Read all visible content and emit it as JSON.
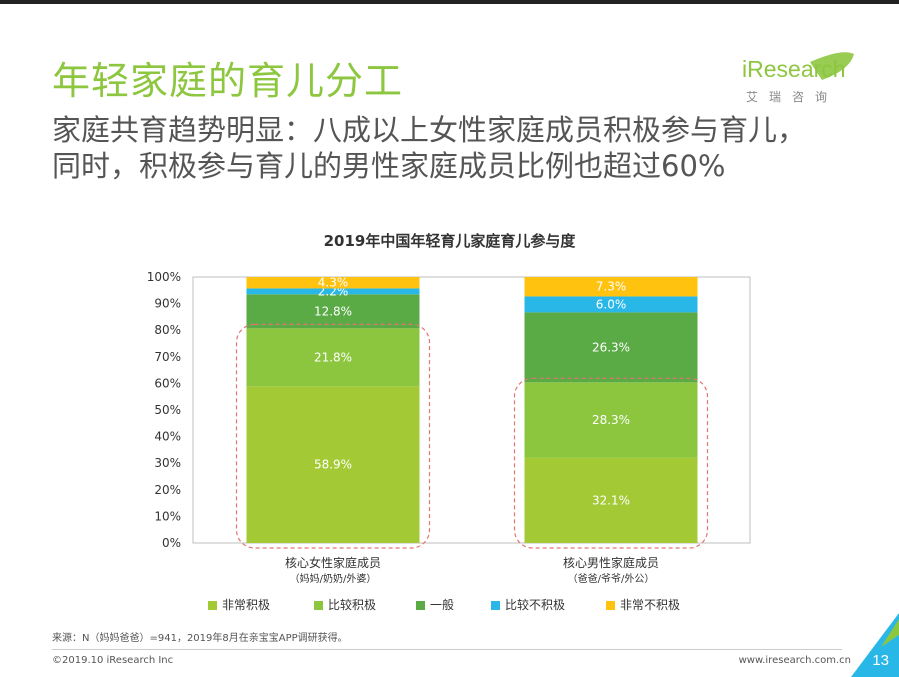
{
  "header": {
    "title": "年轻家庭的育儿分工",
    "subtitle_lines": [
      "家庭共育趋势明显：八成以上女性家庭成员积极参与育儿，",
      "同时，积极参与育儿的男性家庭成员比例也超过60%"
    ]
  },
  "logo": {
    "brand_i": "i",
    "brand_rest": "Research",
    "tagline": "艾瑞咨询"
  },
  "colors": {
    "title_green": "#8dc63f",
    "very_active": "#a3c935",
    "active": "#8cc63f",
    "neutral": "#5aaa46",
    "less_active": "#29b7e8",
    "not_active": "#ffc20e",
    "highlight": "#e57373"
  },
  "chart_data": {
    "type": "bar",
    "stacked": true,
    "title": "2019年中国年轻育儿家庭育儿参与度",
    "categories": [
      {
        "label": "核心女性家庭成员",
        "sublabel": "（妈妈/奶奶/外婆）"
      },
      {
        "label": "核心男性家庭成员",
        "sublabel": "（爸爸/爷爷/外公）"
      }
    ],
    "series": [
      {
        "name": "非常积极",
        "values": [
          58.9,
          32.1
        ],
        "labels": [
          "58.9%",
          "32.1%"
        ]
      },
      {
        "name": "比较积极",
        "values": [
          21.8,
          28.3
        ],
        "labels": [
          "21.8%",
          "28.3%"
        ]
      },
      {
        "name": "一般",
        "values": [
          12.8,
          26.3
        ],
        "labels": [
          "12.8%",
          "26.3%"
        ]
      },
      {
        "name": "比较不积极",
        "values": [
          2.2,
          6.0
        ],
        "labels": [
          "2.2%",
          "6.0%"
        ]
      },
      {
        "name": "非常不积极",
        "values": [
          4.3,
          7.3
        ],
        "labels": [
          "4.3%",
          "7.3%"
        ]
      }
    ],
    "y_ticks": [
      "0%",
      "10%",
      "20%",
      "30%",
      "40%",
      "50%",
      "60%",
      "70%",
      "80%",
      "90%",
      "100%"
    ],
    "ylim": [
      0,
      100
    ],
    "legend_position": "bottom",
    "highlight_note": "dashed boxes around the 非常积极 + 比较积极 segments of both bars"
  },
  "footer": {
    "source": "来源：N（妈妈爸爸）=941，2019年8月在亲宝宝APP调研获得。",
    "copyright": "©2019.10 iResearch Inc",
    "website": "www.iresearch.com.cn",
    "page_number": "13"
  }
}
